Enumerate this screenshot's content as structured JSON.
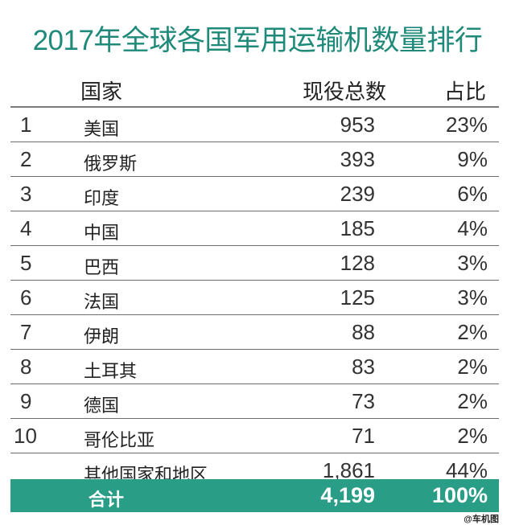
{
  "title": "2017年全球各国军用运输机数量排行",
  "headers": {
    "country": "国家",
    "count": "现役总数",
    "share": "占比"
  },
  "rows": [
    {
      "rank": "1",
      "country": "美国",
      "count": "953",
      "share": "23%"
    },
    {
      "rank": "2",
      "country": "俄罗斯",
      "count": "393",
      "share": "9%"
    },
    {
      "rank": "3",
      "country": "印度",
      "count": "239",
      "share": "6%"
    },
    {
      "rank": "4",
      "country": "中国",
      "count": "185",
      "share": "4%"
    },
    {
      "rank": "5",
      "country": "巴西",
      "count": "128",
      "share": "3%"
    },
    {
      "rank": "6",
      "country": "法国",
      "count": "125",
      "share": "3%"
    },
    {
      "rank": "7",
      "country": "伊朗",
      "count": "88",
      "share": "2%"
    },
    {
      "rank": "8",
      "country": "土耳其",
      "count": "83",
      "share": "2%"
    },
    {
      "rank": "9",
      "country": "德国",
      "count": "73",
      "share": "2%"
    },
    {
      "rank": "10",
      "country": "哥伦比亚",
      "count": "71",
      "share": "2%"
    },
    {
      "rank": "",
      "country": "其他国家和地区",
      "count": "1,861",
      "share": "44%"
    }
  ],
  "total": {
    "label": "合计",
    "count": "4,199",
    "share": "100%"
  },
  "watermark": "@车机图",
  "colors": {
    "title": "#1f8a7a",
    "total_bar": "#2a9d86"
  }
}
